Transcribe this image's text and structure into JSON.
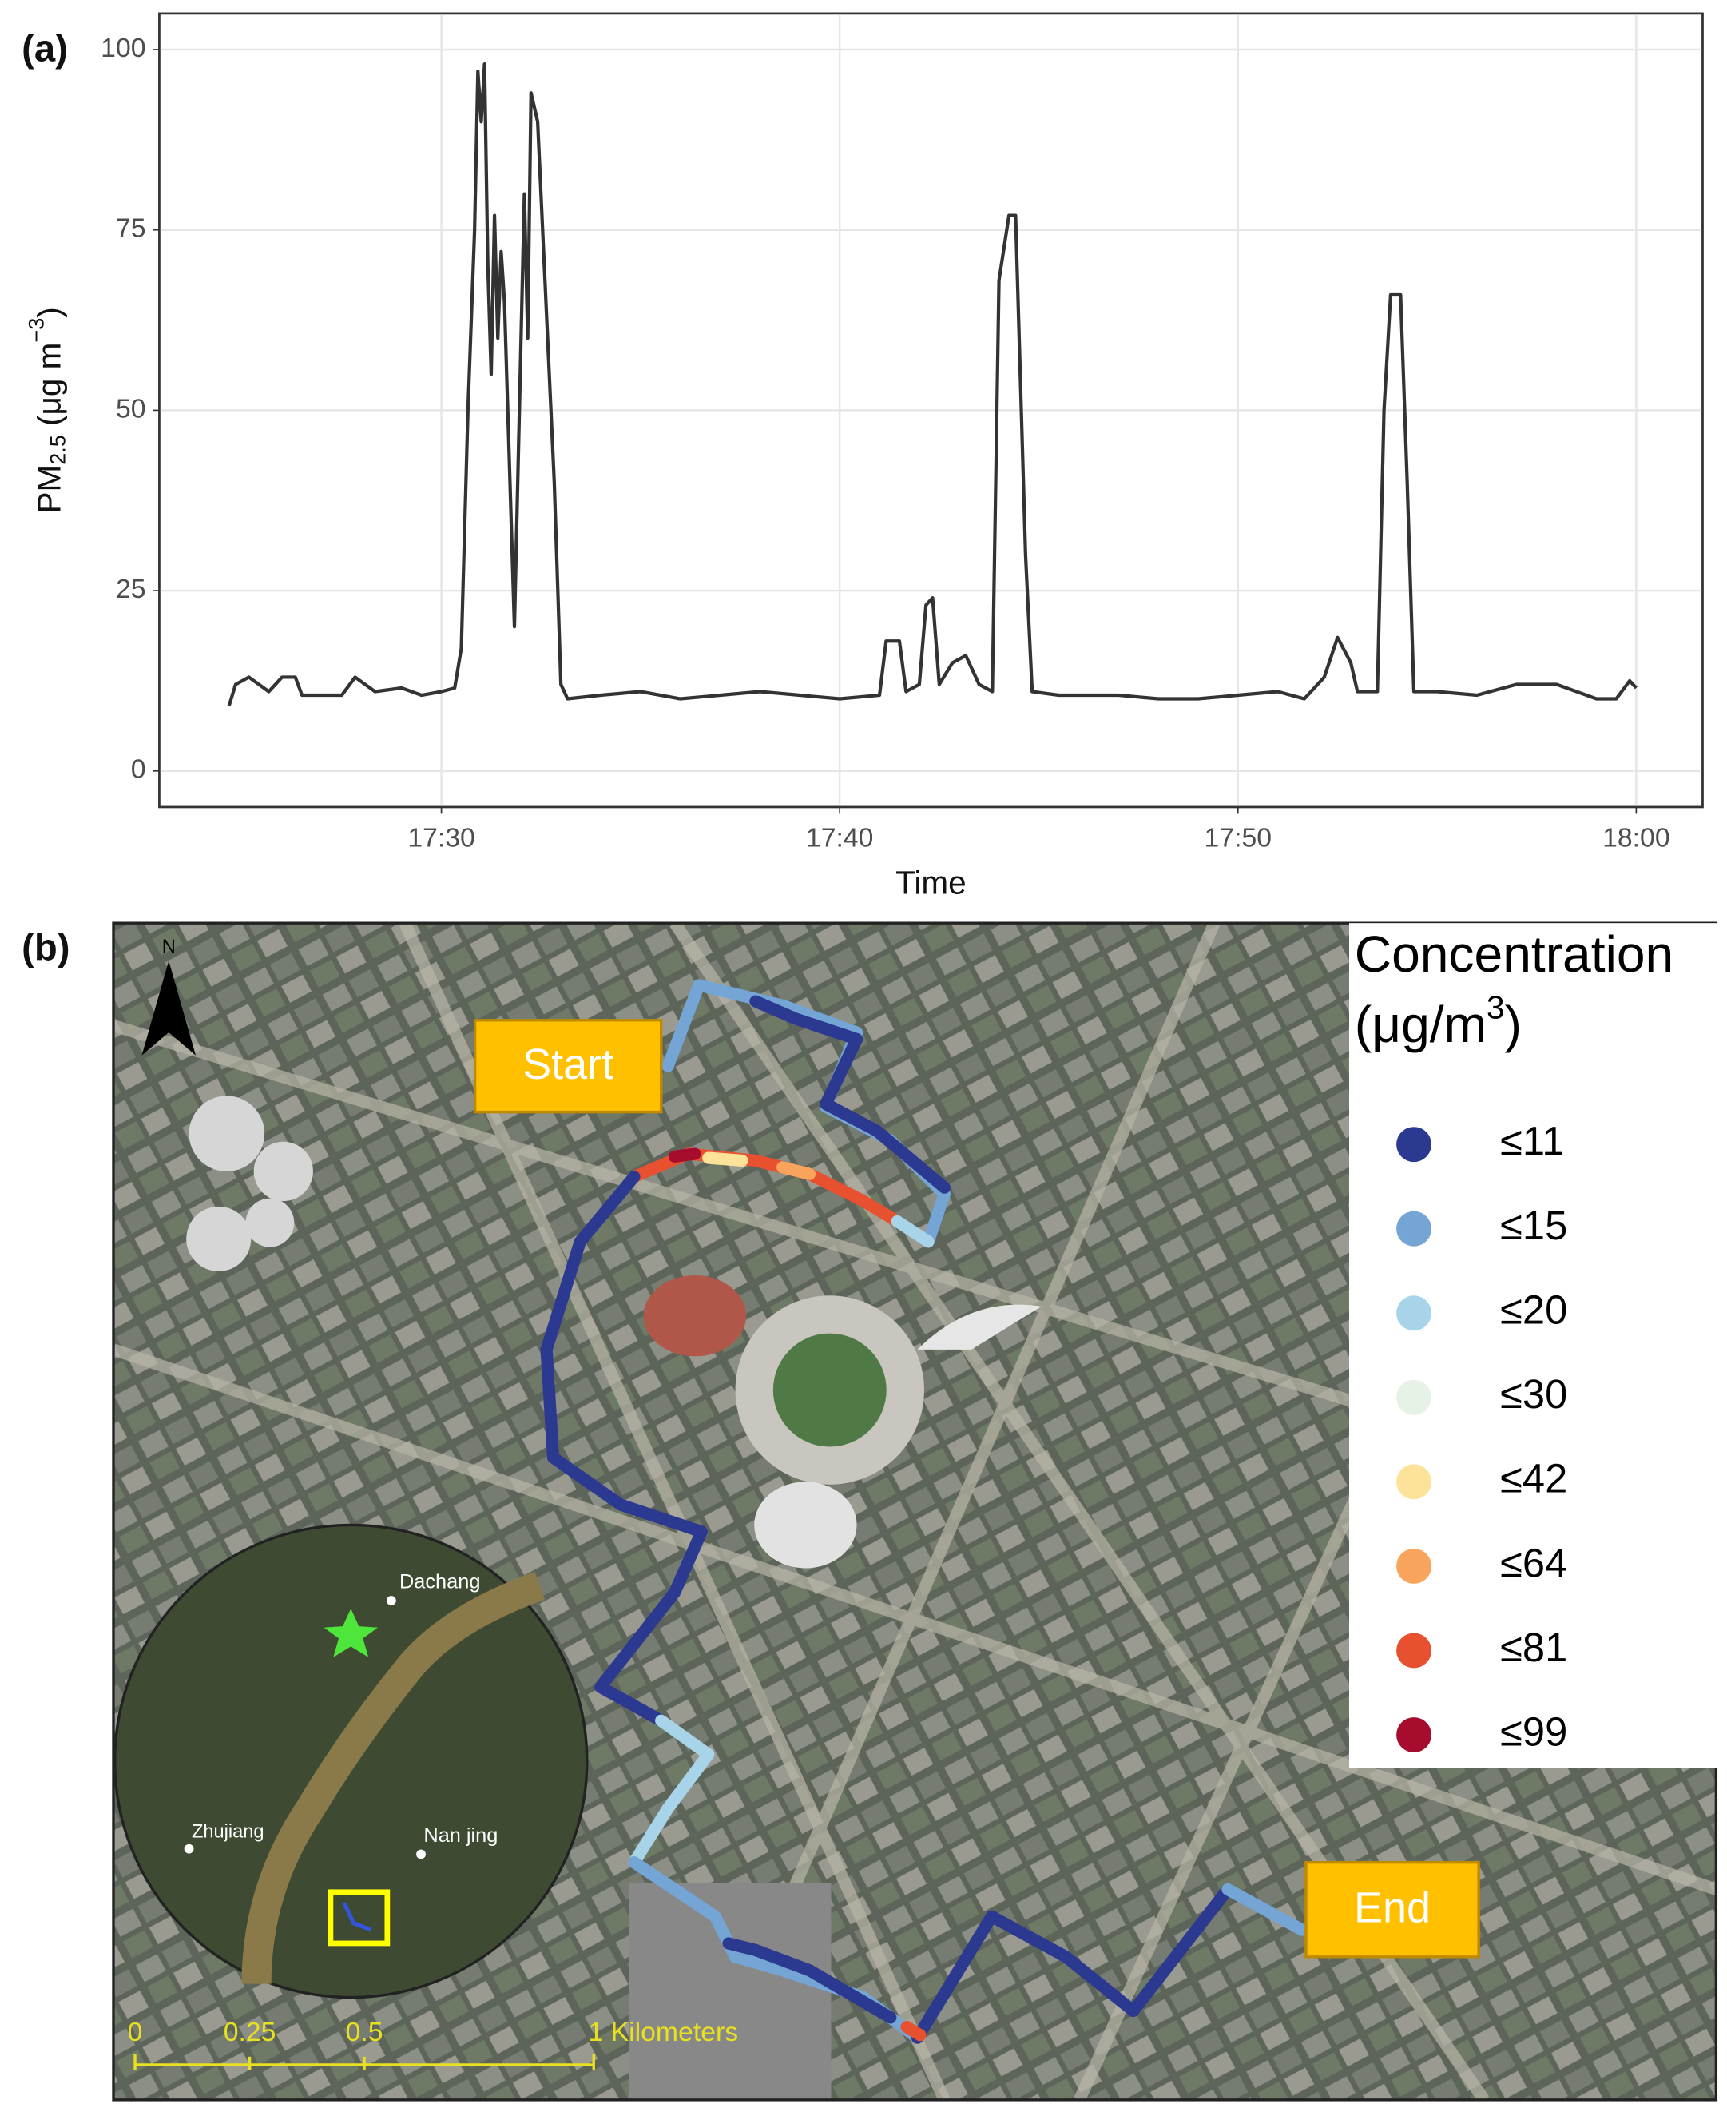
{
  "chart_data": [
    {
      "type": "line",
      "panel_label": "(a)",
      "x_label": "Time",
      "y_label": {
        "base": "PM",
        "sub": "2.5",
        "rest": " (μg m",
        "sup": "−3",
        "end": ")"
      },
      "xlim": [
        "17:22:55",
        "18:01:40"
      ],
      "xticks": [
        "17:30",
        "17:40",
        "17:50",
        "18:00"
      ],
      "ylim": [
        -5,
        105
      ],
      "yticks": [
        0,
        25,
        50,
        75,
        100
      ],
      "grid": true,
      "series": [
        {
          "name": "PM2.5",
          "color": "#333333",
          "x": [
            "17:24:40",
            "17:24:50",
            "17:25:10",
            "17:25:40",
            "17:26:00",
            "17:26:20",
            "17:26:30",
            "17:27:00",
            "17:27:30",
            "17:27:50",
            "17:28:20",
            "17:29:00",
            "17:29:30",
            "17:30:00",
            "17:30:20",
            "17:30:30",
            "17:30:40",
            "17:30:50",
            "17:30:55",
            "17:31:00",
            "17:31:05",
            "17:31:10",
            "17:31:15",
            "17:31:20",
            "17:31:25",
            "17:31:30",
            "17:31:35",
            "17:31:40",
            "17:31:45",
            "17:31:50",
            "17:31:55",
            "17:32:05",
            "17:32:10",
            "17:32:15",
            "17:32:25",
            "17:32:35",
            "17:32:50",
            "17:33:00",
            "17:33:10",
            "17:34:00",
            "17:35:00",
            "17:36:00",
            "17:37:00",
            "17:38:00",
            "17:39:00",
            "17:40:00",
            "17:41:00",
            "17:41:10",
            "17:41:30",
            "17:41:40",
            "17:42:00",
            "17:42:10",
            "17:42:20",
            "17:42:30",
            "17:42:50",
            "17:43:10",
            "17:43:30",
            "17:43:50",
            "17:44:00",
            "17:44:15",
            "17:44:25",
            "17:44:40",
            "17:44:50",
            "17:45:30",
            "17:47:00",
            "17:48:00",
            "17:49:00",
            "17:50:00",
            "17:51:00",
            "17:51:40",
            "17:52:10",
            "17:52:30",
            "17:52:50",
            "17:53:00",
            "17:53:30",
            "17:53:40",
            "17:53:50",
            "17:54:05",
            "17:54:15",
            "17:54:25",
            "17:55:00",
            "17:56:00",
            "17:57:00",
            "17:58:00",
            "17:58:30",
            "17:59:00",
            "17:59:30",
            "17:59:50",
            "18:00:00"
          ],
          "values": [
            9,
            12,
            13,
            11,
            13,
            13,
            10.5,
            10.5,
            10.5,
            13,
            11,
            11.5,
            10.5,
            11,
            11.5,
            17,
            50,
            75,
            97,
            90,
            98,
            70,
            55,
            77,
            60,
            72,
            65,
            50,
            35,
            20,
            40,
            80,
            60,
            94,
            90,
            70,
            40,
            12,
            10,
            10.5,
            11,
            10,
            10.5,
            11,
            10.5,
            10,
            10.5,
            18,
            18,
            11,
            12,
            23,
            24,
            12,
            15,
            16,
            12,
            11,
            68,
            77,
            77,
            30,
            11,
            10.5,
            10.5,
            10,
            10,
            10.5,
            11,
            10,
            13,
            18.5,
            15,
            11,
            11,
            50,
            66,
            66,
            40,
            11,
            11,
            10.5,
            12,
            12,
            11,
            10,
            10,
            12.5,
            11.5
          ]
        }
      ]
    },
    {
      "type": "map",
      "panel_label": "(b)",
      "north": "N",
      "start_label": "Start",
      "end_label": "End",
      "inset_places": [
        "Dachang",
        "Zhujiang",
        "Nan jing"
      ],
      "scale_labels": [
        "0",
        "0.25",
        "0.5",
        "1 Kilometers"
      ],
      "legend_title": {
        "line1": "Concentration",
        "line2": "(μg/m",
        "sup": "3",
        "end": ")"
      },
      "legend": [
        {
          "label": "≤11",
          "color": "#2b3990"
        },
        {
          "label": "≤15",
          "color": "#74a5d4"
        },
        {
          "label": "≤20",
          "color": "#a8d4ea"
        },
        {
          "label": "≤30",
          "color": "#e6f2e6"
        },
        {
          "label": "≤42",
          "color": "#fde29a"
        },
        {
          "label": "≤64",
          "color": "#f9a45c"
        },
        {
          "label": "≤81",
          "color": "#e8512f"
        },
        {
          "label": "≤99",
          "color": "#a50c2e"
        }
      ]
    }
  ]
}
